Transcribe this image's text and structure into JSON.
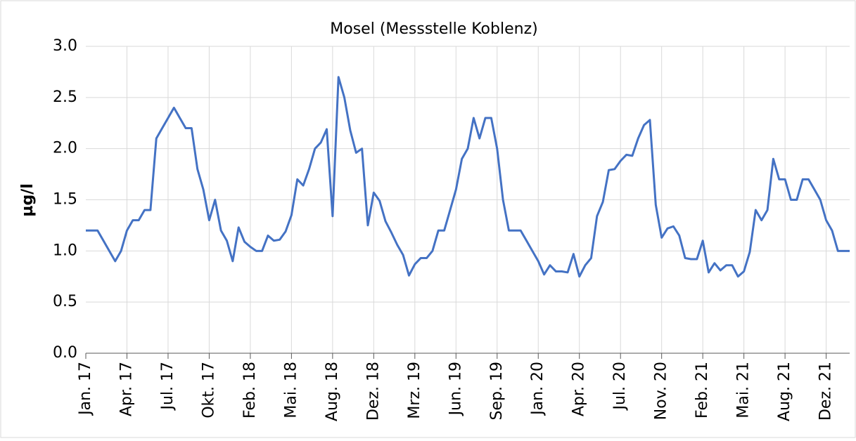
{
  "chart_data": {
    "type": "line",
    "title": "Mosel (Messstelle Koblenz)",
    "y_label": "µg/l",
    "categories": [
      "Jan. 17",
      null,
      null,
      null,
      null,
      null,
      null,
      "Apr. 17",
      null,
      null,
      null,
      null,
      null,
      null,
      "Jul. 17",
      null,
      null,
      null,
      null,
      null,
      null,
      "Okt. 17",
      null,
      null,
      null,
      null,
      null,
      null,
      "Feb. 18",
      null,
      null,
      null,
      null,
      null,
      null,
      "Mai. 18",
      null,
      null,
      null,
      null,
      null,
      null,
      "Aug. 18",
      null,
      null,
      null,
      null,
      null,
      null,
      "Dez. 18",
      null,
      null,
      null,
      null,
      null,
      null,
      "Mrz. 19",
      null,
      null,
      null,
      null,
      null,
      null,
      "Jun. 19",
      null,
      null,
      null,
      null,
      null,
      null,
      "Sep. 19",
      null,
      null,
      null,
      null,
      null,
      null,
      "Jan. 20",
      null,
      null,
      null,
      null,
      null,
      null,
      "Apr. 20",
      null,
      null,
      null,
      null,
      null,
      null,
      "Jul. 20",
      null,
      null,
      null,
      null,
      null,
      null,
      "Nov. 20",
      null,
      null,
      null,
      null,
      null,
      null,
      "Feb. 21",
      null,
      null,
      null,
      null,
      null,
      null,
      "Mai. 21",
      null,
      null,
      null,
      null,
      null,
      null,
      "Aug. 21",
      null,
      null,
      null,
      null,
      null,
      null,
      "Dez. 21",
      null,
      null,
      null,
      null
    ],
    "values": [
      1.2,
      1.2,
      1.2,
      1.1,
      1.0,
      0.9,
      1.0,
      1.2,
      1.3,
      1.3,
      1.4,
      1.4,
      2.1,
      2.2,
      2.3,
      2.4,
      2.3,
      2.2,
      2.2,
      1.8,
      1.6,
      1.3,
      1.5,
      1.2,
      1.1,
      0.9,
      1.23,
      1.09,
      1.04,
      1.0,
      1.0,
      1.15,
      1.1,
      1.11,
      1.19,
      1.35,
      1.7,
      1.64,
      1.8,
      2.0,
      2.06,
      2.19,
      1.34,
      2.7,
      2.5,
      2.18,
      1.96,
      2.0,
      1.25,
      1.57,
      1.49,
      1.29,
      1.18,
      1.06,
      0.96,
      0.76,
      0.87,
      0.93,
      0.93,
      1.0,
      1.2,
      1.2,
      1.4,
      1.6,
      1.9,
      2.0,
      2.3,
      2.1,
      2.3,
      2.3,
      2.0,
      1.5,
      1.2,
      1.2,
      1.2,
      1.1,
      1.0,
      0.9,
      0.77,
      0.86,
      0.8,
      0.8,
      0.79,
      0.97,
      0.75,
      0.86,
      0.93,
      1.34,
      1.48,
      1.79,
      1.8,
      1.88,
      1.94,
      1.93,
      2.1,
      2.23,
      2.28,
      1.45,
      1.13,
      1.22,
      1.24,
      1.15,
      0.93,
      0.92,
      0.92,
      1.1,
      0.79,
      0.88,
      0.81,
      0.86,
      0.86,
      0.75,
      0.8,
      0.99,
      1.4,
      1.3,
      1.4,
      1.9,
      1.7,
      1.7,
      1.5,
      1.5,
      1.7,
      1.7,
      1.6,
      1.5,
      1.3,
      1.2,
      1.0,
      1.0,
      1.0
    ],
    "color": "#4472c4",
    "ylim": [
      0,
      3
    ],
    "yticks": [
      {
        "value": 0,
        "label": "0.0"
      },
      0.5,
      {
        "value": 1,
        "label": "1.0"
      },
      1.5,
      {
        "value": 2,
        "label": "2.0"
      },
      2.5,
      {
        "value": 3,
        "label": "3.0"
      }
    ],
    "grid": true
  }
}
